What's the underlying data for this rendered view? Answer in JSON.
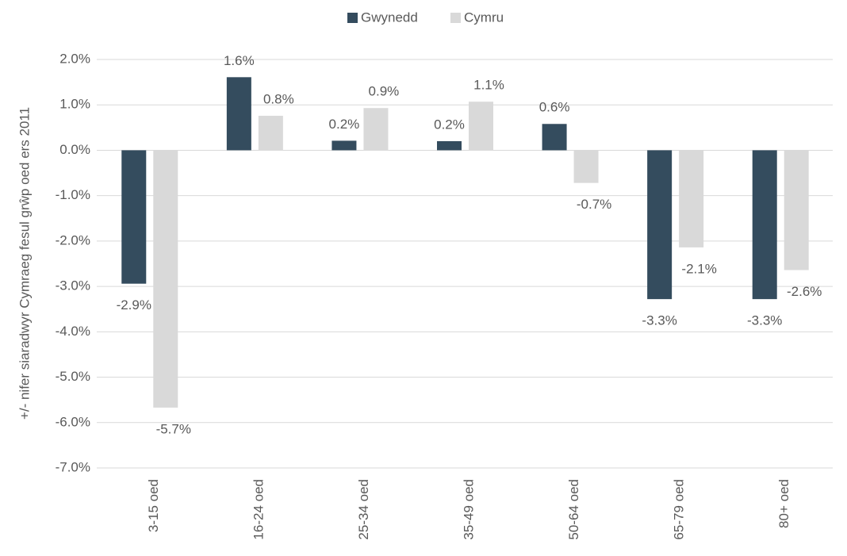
{
  "chart_data": {
    "type": "bar",
    "y_label": "+/- nifer siaradwyr Cymraeg fesul grŵp oed ers 2011",
    "categories": [
      "3-15 oed",
      "16-24 oed",
      "25-34 oed",
      "35-49 oed",
      "50-64 oed",
      "65-79 oed",
      "80+ oed"
    ],
    "series": [
      {
        "name": "Gwynedd",
        "color": "#344c5e",
        "values": [
          -2.94,
          1.61,
          0.21,
          0.2,
          0.58,
          -3.28,
          -3.28
        ],
        "value_labels": [
          "-2.9%",
          "1.6%",
          "0.2%",
          "0.2%",
          "0.6%",
          "-3.3%",
          "-3.3%"
        ]
      },
      {
        "name": "Cymru",
        "color": "#d9d9d9",
        "values": [
          -5.67,
          0.76,
          0.93,
          1.07,
          -0.72,
          -2.14,
          -2.64
        ],
        "value_labels": [
          "-5.7%",
          "0.8%",
          "0.9%",
          "1.1%",
          "-0.7%",
          "-2.1%",
          "-2.6%"
        ]
      }
    ],
    "ylim": [
      -7,
      2
    ],
    "yticks": [
      {
        "value": 2,
        "label": "2.0%"
      },
      {
        "value": 1,
        "label": "1.0%"
      },
      {
        "value": 0,
        "label": "0.0%"
      },
      {
        "value": -1,
        "label": "-1.0%"
      },
      {
        "value": -2,
        "label": "-2.0%"
      },
      {
        "value": -3,
        "label": "-3.0%"
      },
      {
        "value": -4,
        "label": "-4.0%"
      },
      {
        "value": -5,
        "label": "-5.0%"
      },
      {
        "value": -6,
        "label": "-6.0%"
      },
      {
        "value": -7,
        "label": "-7.0%"
      }
    ],
    "grid": true,
    "legend": "top"
  }
}
